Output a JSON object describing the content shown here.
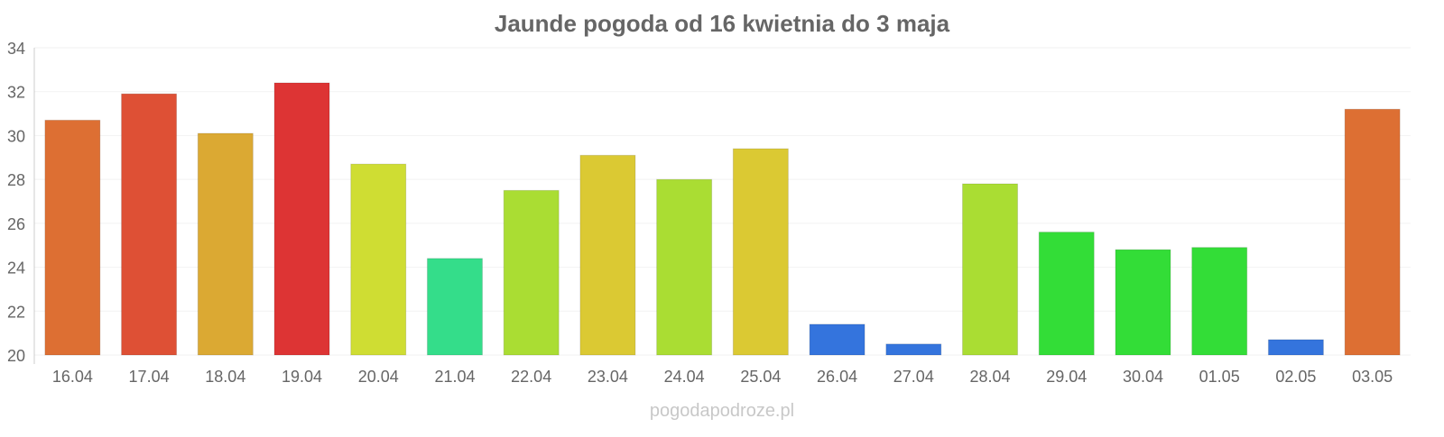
{
  "chart_data": {
    "type": "bar",
    "title": "Jaunde pogoda od 16 kwietnia do 3 maja",
    "xlabel": "",
    "ylabel": "",
    "ylim": [
      20,
      34
    ],
    "yticks": [
      "20",
      "22",
      "24",
      "26",
      "28",
      "30",
      "32",
      "34"
    ],
    "grid": true,
    "categories": [
      "16.04",
      "17.04",
      "18.04",
      "19.04",
      "20.04",
      "21.04",
      "22.04",
      "23.04",
      "24.04",
      "25.04",
      "26.04",
      "27.04",
      "28.04",
      "29.04",
      "30.04",
      "01.05",
      "02.05",
      "03.05"
    ],
    "values": [
      30.7,
      31.9,
      30.1,
      32.4,
      28.7,
      24.4,
      27.5,
      29.1,
      28.0,
      29.4,
      21.4,
      20.5,
      27.8,
      25.6,
      24.8,
      24.9,
      20.7,
      31.2
    ],
    "colors": [
      "#dd6f33",
      "#de5035",
      "#dba933",
      "#dd3434",
      "#cfdd33",
      "#34dd8a",
      "#aadd33",
      "#dbc933",
      "#aadd33",
      "#dbc933",
      "#3474dd",
      "#3474dd",
      "#aadd33",
      "#33dd37",
      "#33dd37",
      "#33dd37",
      "#3474dd",
      "#dd6f33"
    ]
  },
  "watermark": "pogodapodroze.pl"
}
